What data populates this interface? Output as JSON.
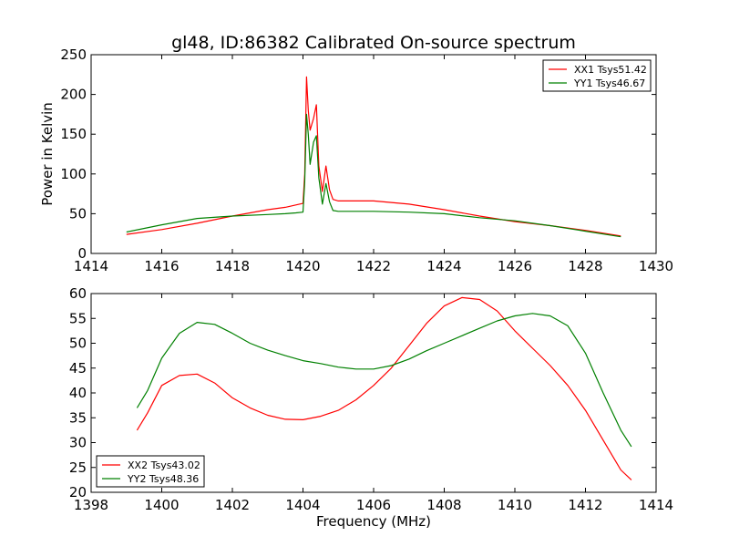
{
  "chart_data": [
    {
      "type": "line",
      "title": "gl48, ID:86382 Calibrated On-source spectrum",
      "xlabel": "",
      "ylabel": "Power in Kelvin",
      "xlim": [
        1414,
        1430
      ],
      "ylim": [
        0,
        250
      ],
      "xticks": [
        "1414",
        "1416",
        "1418",
        "1420",
        "1422",
        "1424",
        "1426",
        "1428",
        "1430"
      ],
      "yticks": [
        "0",
        "50",
        "100",
        "150",
        "200",
        "250"
      ],
      "legend_position": "top-right",
      "grid": false,
      "series": [
        {
          "name": "XX1 Tsys51.42",
          "color": "#ff0000",
          "points": [
            [
              1415,
              24
            ],
            [
              1416,
              30
            ],
            [
              1417,
              38
            ],
            [
              1418,
              47
            ],
            [
              1419,
              55
            ],
            [
              1419.5,
              58
            ],
            [
              1419.8,
              61
            ],
            [
              1420.0,
              63
            ],
            [
              1420.05,
              100
            ],
            [
              1420.1,
              222
            ],
            [
              1420.15,
              180
            ],
            [
              1420.2,
              155
            ],
            [
              1420.3,
              170
            ],
            [
              1420.38,
              187
            ],
            [
              1420.45,
              110
            ],
            [
              1420.55,
              78
            ],
            [
              1420.65,
              110
            ],
            [
              1420.75,
              80
            ],
            [
              1420.85,
              68
            ],
            [
              1421,
              66
            ],
            [
              1422,
              66
            ],
            [
              1423,
              62
            ],
            [
              1424,
              55
            ],
            [
              1425,
              47
            ],
            [
              1426,
              40
            ],
            [
              1427,
              35
            ],
            [
              1428,
              29
            ],
            [
              1429,
              22
            ]
          ]
        },
        {
          "name": "YY1 Tsys46.67",
          "color": "#008000",
          "points": [
            [
              1415,
              27
            ],
            [
              1416,
              36
            ],
            [
              1417,
              44
            ],
            [
              1418,
              47
            ],
            [
              1419,
              49
            ],
            [
              1419.5,
              50
            ],
            [
              1419.8,
              51
            ],
            [
              1420.0,
              52
            ],
            [
              1420.05,
              90
            ],
            [
              1420.1,
              175
            ],
            [
              1420.15,
              150
            ],
            [
              1420.2,
              112
            ],
            [
              1420.3,
              140
            ],
            [
              1420.38,
              148
            ],
            [
              1420.45,
              95
            ],
            [
              1420.55,
              62
            ],
            [
              1420.65,
              88
            ],
            [
              1420.75,
              65
            ],
            [
              1420.85,
              54
            ],
            [
              1421,
              53
            ],
            [
              1422,
              53
            ],
            [
              1423,
              52
            ],
            [
              1424,
              50
            ],
            [
              1425,
              45
            ],
            [
              1426,
              41
            ],
            [
              1427,
              35
            ],
            [
              1428,
              28
            ],
            [
              1429,
              21
            ]
          ]
        }
      ]
    },
    {
      "type": "line",
      "title": "",
      "xlabel": "Frequency (MHz)",
      "ylabel": "",
      "xlim": [
        1398,
        1414
      ],
      "ylim": [
        20,
        60
      ],
      "xticks": [
        "1398",
        "1400",
        "1402",
        "1404",
        "1406",
        "1408",
        "1410",
        "1412",
        "1414"
      ],
      "yticks": [
        "20",
        "25",
        "30",
        "35",
        "40",
        "45",
        "50",
        "55",
        "60"
      ],
      "legend_position": "bottom-left",
      "grid": false,
      "series": [
        {
          "name": "XX2 Tsys43.02",
          "color": "#ff0000",
          "points": [
            [
              1399.3,
              32.5
            ],
            [
              1399.6,
              36
            ],
            [
              1400,
              41.5
            ],
            [
              1400.5,
              43.5
            ],
            [
              1401,
              43.8
            ],
            [
              1401.5,
              42
            ],
            [
              1402,
              39
            ],
            [
              1402.5,
              37
            ],
            [
              1403,
              35.5
            ],
            [
              1403.5,
              34.7
            ],
            [
              1404,
              34.6
            ],
            [
              1404.5,
              35.3
            ],
            [
              1405,
              36.5
            ],
            [
              1405.5,
              38.6
            ],
            [
              1406,
              41.5
            ],
            [
              1406.5,
              45
            ],
            [
              1407,
              49.5
            ],
            [
              1407.5,
              54
            ],
            [
              1408,
              57.5
            ],
            [
              1408.5,
              59.2
            ],
            [
              1409,
              58.8
            ],
            [
              1409.5,
              56.5
            ],
            [
              1410,
              52.5
            ],
            [
              1410.5,
              49
            ],
            [
              1411,
              45.5
            ],
            [
              1411.5,
              41.5
            ],
            [
              1412,
              36.5
            ],
            [
              1412.5,
              30.5
            ],
            [
              1413,
              24.5
            ],
            [
              1413.3,
              22.5
            ]
          ]
        },
        {
          "name": "YY2 Tsys48.36",
          "color": "#008000",
          "points": [
            [
              1399.3,
              37
            ],
            [
              1399.6,
              40.5
            ],
            [
              1400,
              47
            ],
            [
              1400.5,
              52
            ],
            [
              1401,
              54.2
            ],
            [
              1401.5,
              53.8
            ],
            [
              1402,
              52
            ],
            [
              1402.5,
              50
            ],
            [
              1403,
              48.6
            ],
            [
              1403.5,
              47.5
            ],
            [
              1404,
              46.5
            ],
            [
              1404.5,
              45.9
            ],
            [
              1405,
              45.2
            ],
            [
              1405.5,
              44.8
            ],
            [
              1406,
              44.8
            ],
            [
              1406.5,
              45.5
            ],
            [
              1407,
              46.8
            ],
            [
              1407.5,
              48.5
            ],
            [
              1408,
              50
            ],
            [
              1408.5,
              51.5
            ],
            [
              1409,
              53
            ],
            [
              1409.5,
              54.5
            ],
            [
              1410,
              55.5
            ],
            [
              1410.5,
              56
            ],
            [
              1411,
              55.5
            ],
            [
              1411.5,
              53.5
            ],
            [
              1412,
              48
            ],
            [
              1412.5,
              40
            ],
            [
              1413,
              32.5
            ],
            [
              1413.3,
              29.2
            ]
          ]
        }
      ]
    }
  ]
}
